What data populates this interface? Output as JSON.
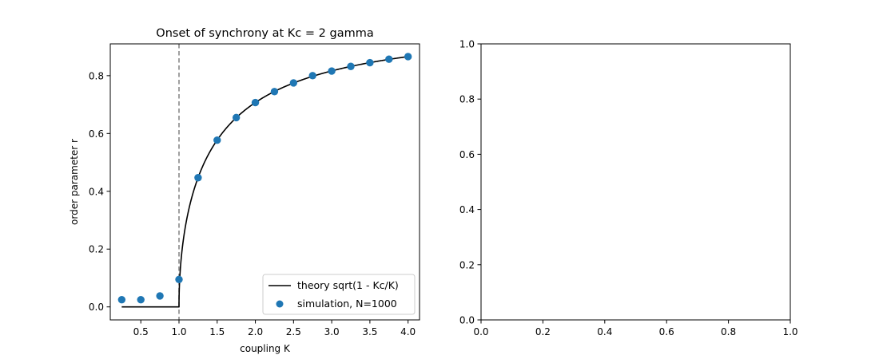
{
  "chart_data": [
    {
      "type": "scatter",
      "title": "Onset of synchrony at Kc = 2 gamma",
      "xlabel": "coupling K",
      "ylabel": "order parameter r",
      "xlim": [
        0.1,
        4.15
      ],
      "ylim": [
        -0.045,
        0.91
      ],
      "xticks": [
        0.5,
        1.0,
        1.5,
        2.0,
        2.5,
        3.0,
        3.5,
        4.0
      ],
      "xtick_labels": [
        "0.5",
        "1.0",
        "1.5",
        "2.0",
        "2.5",
        "3.0",
        "3.5",
        "4.0"
      ],
      "yticks": [
        0.0,
        0.2,
        0.4,
        0.6,
        0.8
      ],
      "ytick_labels": [
        "0.0",
        "0.2",
        "0.4",
        "0.6",
        "0.8"
      ],
      "Kc": 1.0,
      "series": [
        {
          "name": "theory sqrt(1 - Kc/K)",
          "kind": "line",
          "color": "#000000",
          "x_range": [
            0.25,
            4.0
          ]
        },
        {
          "name": "simulation, N=1000",
          "kind": "scatter",
          "color": "#1f77b4",
          "x": [
            0.25,
            0.5,
            0.75,
            1.0,
            1.25,
            1.5,
            1.75,
            2.0,
            2.25,
            2.5,
            2.75,
            3.0,
            3.25,
            3.5,
            3.75,
            4.0
          ],
          "y": [
            0.025,
            0.025,
            0.038,
            0.095,
            0.447,
            0.577,
            0.655,
            0.707,
            0.745,
            0.775,
            0.8,
            0.816,
            0.832,
            0.845,
            0.857,
            0.866
          ]
        }
      ],
      "vline": {
        "x": 1.0,
        "style": "dashed",
        "color": "#808080"
      },
      "legend": "lower-right",
      "grid": false
    },
    {
      "type": "scatter",
      "title": "",
      "xlabel": "",
      "ylabel": "",
      "xlim": [
        0.0,
        1.0
      ],
      "ylim": [
        0.0,
        1.0
      ],
      "xticks": [
        0.0,
        0.2,
        0.4,
        0.6,
        0.8,
        1.0
      ],
      "xtick_labels": [
        "0.0",
        "0.2",
        "0.4",
        "0.6",
        "0.8",
        "1.0"
      ],
      "yticks": [
        0.0,
        0.2,
        0.4,
        0.6,
        0.8,
        1.0
      ],
      "ytick_labels": [
        "0.0",
        "0.2",
        "0.4",
        "0.6",
        "0.8",
        "1.0"
      ],
      "series": [],
      "grid": false
    }
  ]
}
